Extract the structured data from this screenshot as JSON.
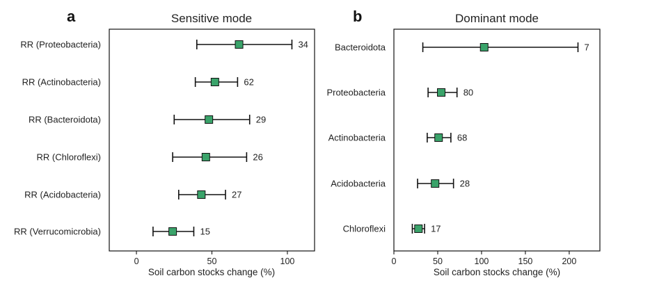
{
  "chart_data": [
    {
      "type": "forest",
      "panel": "a",
      "title": "Sensitive mode",
      "xlabel": "Soil carbon stocks change (%)",
      "xlim": [
        -18,
        118
      ],
      "xticks": [
        0,
        50,
        100
      ],
      "marker_color": "#3aa36a",
      "rows": [
        {
          "label": "RR (Proteobacteria)",
          "value": 68,
          "lo": 40,
          "hi": 103,
          "n": "34"
        },
        {
          "label": "RR (Actinobacteria)",
          "value": 52,
          "lo": 39,
          "hi": 67,
          "n": "62"
        },
        {
          "label": "RR (Bacteroidota)",
          "value": 48,
          "lo": 25,
          "hi": 75,
          "n": "29"
        },
        {
          "label": "RR (Chloroflexi)",
          "value": 46,
          "lo": 24,
          "hi": 73,
          "n": "26"
        },
        {
          "label": "RR (Acidobacteria)",
          "value": 43,
          "lo": 28,
          "hi": 59,
          "n": "27"
        },
        {
          "label": "RR (Verrucomicrobia)",
          "value": 24,
          "lo": 11,
          "hi": 38,
          "n": "15"
        }
      ]
    },
    {
      "type": "forest",
      "panel": "b",
      "title": "Dominant mode",
      "xlabel": "Soil carbon stocks change (%)",
      "xlim": [
        0,
        235
      ],
      "xticks": [
        0,
        50,
        100,
        150,
        200
      ],
      "marker_color": "#3aa36a",
      "rows": [
        {
          "label": "Bacteroidota",
          "value": 103,
          "lo": 33,
          "hi": 210,
          "n": "7"
        },
        {
          "label": "Proteobacteria",
          "value": 54,
          "lo": 39,
          "hi": 72,
          "n": "80"
        },
        {
          "label": "Actinobacteria",
          "value": 51,
          "lo": 38,
          "hi": 65,
          "n": "68"
        },
        {
          "label": "Acidobacteria",
          "value": 47,
          "lo": 27,
          "hi": 68,
          "n": "28"
        },
        {
          "label": "Chloroflexi",
          "value": 28,
          "lo": 21,
          "hi": 35,
          "n": "17"
        }
      ]
    }
  ]
}
